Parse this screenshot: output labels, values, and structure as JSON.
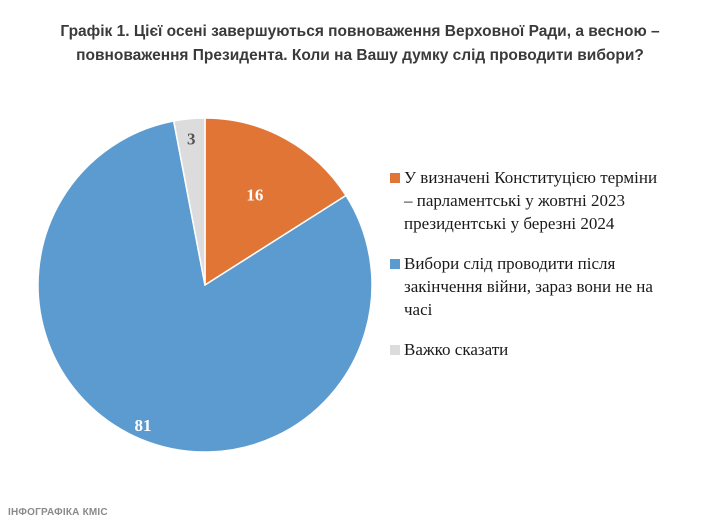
{
  "chart_data": {
    "type": "pie",
    "title_lines": [
      "Графік 1. Цієї осені завершуються повноваження Верховної Ради, а весною –",
      "повноваження Президента. Коли на Вашу думку слід проводити вибори?"
    ],
    "slices": [
      {
        "label_lines": [
          "У визначені Конституцією терміни",
          "– парламентські у жовтні 2023",
          "президентські у березні 2024"
        ],
        "value": 16,
        "value_label": "16",
        "color": "#e07535",
        "label_color": "#ffffff"
      },
      {
        "label_lines": [
          "Вибори слід проводити після",
          "закінчення війни, зараз вони не на",
          "часі"
        ],
        "value": 81,
        "value_label": "81",
        "color": "#5b9bd0",
        "label_color": "#ffffff"
      },
      {
        "label_lines": [
          "Важко сказати"
        ],
        "value": 3,
        "value_label": "3",
        "color": "#dcdcdc",
        "label_color": "#555555"
      }
    ],
    "start_angle": "12 o'clock",
    "direction": "clockwise",
    "legend_position": "right"
  },
  "footer": "ІНФОГРАФІКА КМІС"
}
